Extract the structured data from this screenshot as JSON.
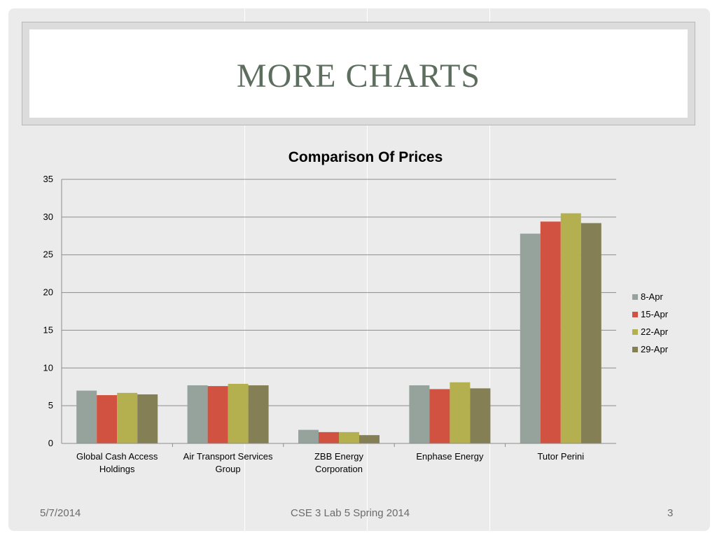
{
  "slide": {
    "title": "MORE CHARTS",
    "footer_date": "5/7/2014",
    "footer_center": "CSE 3 Lab 5 Spring 2014",
    "page_number": "3"
  },
  "colors": {
    "background": "#ebebeb",
    "title_text": "#5d6e5f",
    "gridline": "#8c8c8c"
  },
  "chart_data": {
    "type": "bar",
    "title": "Comparison Of Prices",
    "xlabel": "",
    "ylabel": "",
    "ylim": [
      0,
      35
    ],
    "yticks": [
      0,
      5,
      10,
      15,
      20,
      25,
      30,
      35
    ],
    "grid": true,
    "legend_position": "right",
    "categories": [
      [
        "Global Cash Access",
        "Holdings"
      ],
      [
        "Air Transport Services",
        "Group"
      ],
      [
        "ZBB Energy",
        "Corporation"
      ],
      [
        "Enphase Energy"
      ],
      [
        "Tutor Perini"
      ]
    ],
    "series": [
      {
        "name": "8-Apr",
        "color": "#95a39c",
        "values": [
          7.0,
          7.7,
          1.8,
          7.7,
          27.8
        ]
      },
      {
        "name": "15-Apr",
        "color": "#d15240",
        "values": [
          6.4,
          7.6,
          1.5,
          7.2,
          29.4
        ]
      },
      {
        "name": "22-Apr",
        "color": "#b5b04f",
        "values": [
          6.7,
          7.9,
          1.5,
          8.1,
          30.5
        ]
      },
      {
        "name": "29-Apr",
        "color": "#847f55",
        "values": [
          6.5,
          7.7,
          1.1,
          7.3,
          29.2
        ]
      }
    ]
  }
}
